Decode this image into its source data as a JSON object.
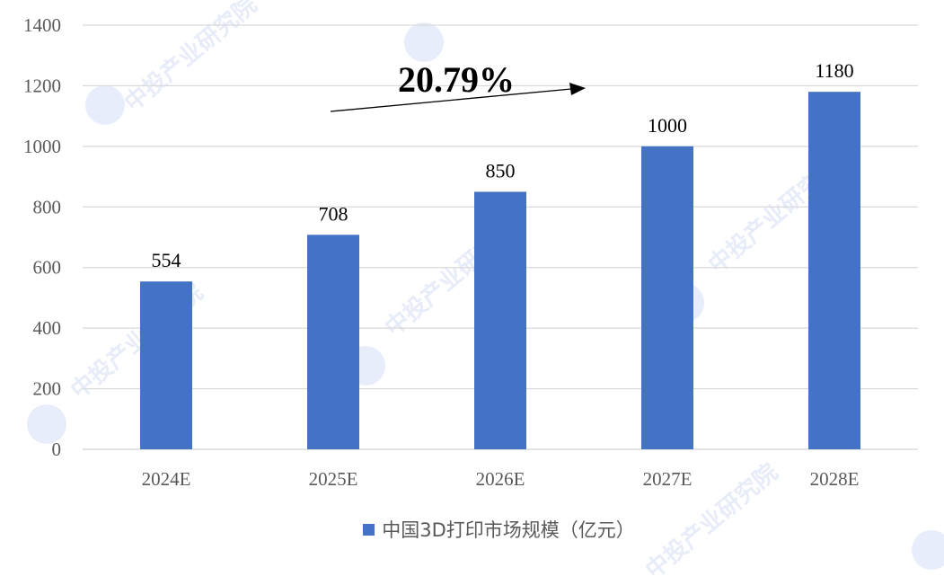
{
  "chart_data": {
    "type": "bar",
    "categories": [
      "2024E",
      "2025E",
      "2026E",
      "2027E",
      "2028E"
    ],
    "series": [
      {
        "name": "中国3D打印市场规模（亿元）",
        "values": [
          554,
          708,
          850,
          1000,
          1180
        ]
      }
    ],
    "data_labels": [
      "554",
      "708",
      "850",
      "1000",
      "1180"
    ],
    "y_ticks": [
      "0",
      "200",
      "400",
      "600",
      "800",
      "1000",
      "1200",
      "1400"
    ],
    "ylim": [
      0,
      1400
    ],
    "grid": true,
    "legend_position": "bottom",
    "annotation": "20.79%",
    "bar_color": "#4472c4"
  },
  "watermark": "中投产业研究院"
}
